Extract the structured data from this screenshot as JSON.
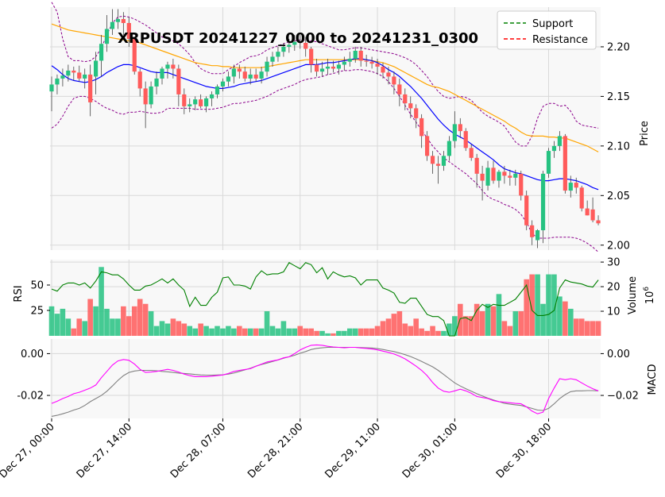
{
  "colors": {
    "up": "#26c281",
    "down": "#ff5b5b",
    "sma_fast": "#0000ff",
    "sma_slow": "#ffa500",
    "bollinger": "#8b008b",
    "rsi": "#008000",
    "macd": "#ff00ff",
    "signal": "#808080",
    "support": "#008000",
    "resistance": "#ff0000",
    "panel_bg": "#f8f8f8",
    "grid": "#d9d9d9"
  },
  "chart_data": {
    "type": "candlestick",
    "title": "XRPUSDT 20241227_0000 to 20241231_0300",
    "x_tick_labels": [
      "Dec 27, 00:00",
      "Dec 27, 14:00",
      "Dec 28, 07:00",
      "Dec 28, 21:00",
      "Dec 29, 11:00",
      "Dec 30, 01:00",
      "Dec 30, 18:00"
    ],
    "x_tick_index": [
      0,
      14,
      31,
      45,
      59,
      73,
      90
    ],
    "legend": [
      {
        "name": "Support",
        "color": "#008000",
        "style": "dashed"
      },
      {
        "name": "Resistance",
        "color": "#ff0000",
        "style": "dashed"
      }
    ],
    "price": {
      "ylabel": "Price",
      "ylim": [
        1.995,
        2.24
      ],
      "ticks": [
        2.0,
        2.05,
        2.1,
        2.15,
        2.2
      ],
      "tick_labels": [
        "2.00",
        "2.05",
        "2.10",
        "2.15",
        "2.20"
      ],
      "open": [
        2.155,
        2.162,
        2.168,
        2.171,
        2.176,
        2.174,
        2.168,
        2.172,
        2.17,
        2.186,
        2.203,
        2.218,
        2.225,
        2.228,
        2.224,
        2.208,
        2.175,
        2.158,
        2.142,
        2.16,
        2.168,
        2.178,
        2.182,
        2.178,
        2.152,
        2.14,
        2.142,
        2.147,
        2.14,
        2.148,
        2.152,
        2.16,
        2.165,
        2.17,
        2.178,
        2.175,
        2.168,
        2.172,
        2.168,
        2.175,
        2.185,
        2.19,
        2.195,
        2.2,
        2.202,
        2.205,
        2.204,
        2.198,
        2.182,
        2.175,
        2.178,
        2.18,
        2.178,
        2.182,
        2.185,
        2.188,
        2.196,
        2.186,
        2.185,
        2.183,
        2.18,
        2.174,
        2.17,
        2.162,
        2.152,
        2.143,
        2.138,
        2.128,
        2.11,
        2.09,
        2.082,
        2.08,
        2.09,
        2.105,
        2.122,
        2.115,
        2.098,
        2.088,
        2.072,
        2.06,
        2.078,
        2.065,
        2.074,
        2.07,
        2.068,
        2.072,
        2.05,
        2.02,
        2.005,
        2.015,
        2.072,
        2.095,
        2.1,
        2.11,
        2.055,
        2.063,
        2.058,
        2.037,
        2.036,
        2.025
      ],
      "high": [
        2.17,
        2.172,
        2.178,
        2.182,
        2.18,
        2.181,
        2.178,
        2.182,
        2.195,
        2.212,
        2.232,
        2.238,
        2.238,
        2.235,
        2.23,
        2.21,
        2.178,
        2.165,
        2.165,
        2.175,
        2.18,
        2.185,
        2.188,
        2.182,
        2.158,
        2.148,
        2.15,
        2.152,
        2.15,
        2.155,
        2.162,
        2.168,
        2.175,
        2.182,
        2.182,
        2.18,
        2.178,
        2.178,
        2.18,
        2.19,
        2.195,
        2.2,
        2.204,
        2.208,
        2.212,
        2.212,
        2.21,
        2.2,
        2.188,
        2.185,
        2.188,
        2.186,
        2.186,
        2.19,
        2.195,
        2.2,
        2.2,
        2.192,
        2.19,
        2.188,
        2.184,
        2.18,
        2.175,
        2.168,
        2.158,
        2.15,
        2.142,
        2.132,
        2.115,
        2.095,
        2.09,
        2.095,
        2.11,
        2.135,
        2.128,
        2.118,
        2.102,
        2.092,
        2.08,
        2.085,
        2.085,
        2.076,
        2.08,
        2.076,
        2.076,
        2.075,
        2.055,
        2.025,
        2.016,
        2.075,
        2.098,
        2.105,
        2.115,
        2.112,
        2.07,
        2.068,
        2.06,
        2.045,
        2.048,
        2.03
      ],
      "low": [
        2.135,
        2.152,
        2.16,
        2.165,
        2.166,
        2.165,
        2.158,
        2.13,
        2.152,
        2.17,
        2.195,
        2.212,
        2.218,
        2.212,
        2.2,
        2.172,
        2.15,
        2.118,
        2.138,
        2.152,
        2.162,
        2.168,
        2.168,
        2.14,
        2.132,
        2.134,
        2.136,
        2.138,
        2.134,
        2.14,
        2.148,
        2.155,
        2.16,
        2.163,
        2.168,
        2.165,
        2.162,
        2.165,
        2.163,
        2.17,
        2.18,
        2.185,
        2.19,
        2.194,
        2.196,
        2.198,
        2.19,
        2.174,
        2.17,
        2.17,
        2.172,
        2.174,
        2.172,
        2.176,
        2.18,
        2.184,
        2.18,
        2.18,
        2.178,
        2.172,
        2.168,
        2.162,
        2.152,
        2.14,
        2.136,
        2.128,
        2.118,
        2.098,
        2.085,
        2.072,
        2.062,
        2.075,
        2.085,
        2.098,
        2.108,
        2.095,
        2.085,
        2.058,
        2.045,
        2.055,
        2.062,
        2.058,
        2.062,
        2.06,
        2.06,
        2.045,
        2.015,
        2.0,
        1.997,
        2.002,
        2.068,
        2.088,
        2.095,
        2.052,
        2.048,
        2.052,
        2.034,
        2.03,
        2.023,
        2.02
      ],
      "close": [
        2.162,
        2.168,
        2.171,
        2.176,
        2.174,
        2.168,
        2.172,
        2.144,
        2.186,
        2.203,
        2.218,
        2.225,
        2.228,
        2.224,
        2.208,
        2.175,
        2.158,
        2.142,
        2.16,
        2.168,
        2.178,
        2.182,
        2.178,
        2.152,
        2.14,
        2.142,
        2.147,
        2.14,
        2.148,
        2.152,
        2.16,
        2.165,
        2.17,
        2.178,
        2.175,
        2.168,
        2.172,
        2.168,
        2.175,
        2.185,
        2.19,
        2.195,
        2.2,
        2.202,
        2.205,
        2.204,
        2.198,
        2.182,
        2.175,
        2.178,
        2.18,
        2.178,
        2.182,
        2.185,
        2.188,
        2.196,
        2.186,
        2.185,
        2.183,
        2.18,
        2.174,
        2.17,
        2.162,
        2.152,
        2.143,
        2.138,
        2.128,
        2.11,
        2.09,
        2.082,
        2.08,
        2.09,
        2.105,
        2.122,
        2.115,
        2.098,
        2.088,
        2.072,
        2.065,
        2.078,
        2.065,
        2.074,
        2.07,
        2.068,
        2.072,
        2.05,
        2.02,
        2.008,
        2.015,
        2.072,
        2.095,
        2.1,
        2.11,
        2.055,
        2.063,
        2.058,
        2.037,
        2.03,
        2.025,
        2.022
      ],
      "sma_fast": [
        2.181,
        2.177,
        2.172,
        2.168,
        2.166,
        2.165,
        2.164,
        2.165,
        2.167,
        2.17,
        2.174,
        2.177,
        2.18,
        2.182,
        2.182,
        2.181,
        2.179,
        2.177,
        2.175,
        2.174,
        2.174,
        2.174,
        2.172,
        2.17,
        2.168,
        2.166,
        2.164,
        2.162,
        2.16,
        2.159,
        2.158,
        2.158,
        2.159,
        2.16,
        2.162,
        2.163,
        2.164,
        2.165,
        2.166,
        2.168,
        2.17,
        2.172,
        2.174,
        2.176,
        2.178,
        2.18,
        2.182,
        2.182,
        2.182,
        2.183,
        2.184,
        2.184,
        2.185,
        2.186,
        2.187,
        2.188,
        2.188,
        2.187,
        2.186,
        2.184,
        2.181,
        2.177,
        2.174,
        2.17,
        2.165,
        2.16,
        2.154,
        2.148,
        2.141,
        2.134,
        2.127,
        2.121,
        2.116,
        2.112,
        2.109,
        2.106,
        2.102,
        2.098,
        2.094,
        2.09,
        2.086,
        2.081,
        2.077,
        2.075,
        2.073,
        2.072,
        2.07,
        2.068,
        2.066,
        2.065,
        2.065,
        2.066,
        2.067,
        2.067,
        2.066,
        2.065,
        2.063,
        2.061,
        2.058,
        2.056
      ],
      "sma_slow": [
        2.223,
        2.221,
        2.219,
        2.217,
        2.216,
        2.215,
        2.214,
        2.213,
        2.212,
        2.211,
        2.21,
        2.209,
        2.208,
        2.207,
        2.206,
        2.205,
        2.204,
        2.202,
        2.2,
        2.198,
        2.196,
        2.194,
        2.192,
        2.19,
        2.188,
        2.186,
        2.184,
        2.183,
        2.182,
        2.181,
        2.181,
        2.18,
        2.18,
        2.179,
        2.179,
        2.179,
        2.179,
        2.179,
        2.179,
        2.18,
        2.181,
        2.182,
        2.183,
        2.184,
        2.185,
        2.186,
        2.187,
        2.187,
        2.187,
        2.187,
        2.187,
        2.187,
        2.187,
        2.187,
        2.187,
        2.187,
        2.187,
        2.187,
        2.186,
        2.185,
        2.184,
        2.182,
        2.18,
        2.177,
        2.174,
        2.171,
        2.168,
        2.165,
        2.162,
        2.16,
        2.159,
        2.157,
        2.155,
        2.152,
        2.149,
        2.146,
        2.143,
        2.14,
        2.137,
        2.134,
        2.131,
        2.128,
        2.125,
        2.121,
        2.118,
        2.114,
        2.111,
        2.11,
        2.11,
        2.11,
        2.109,
        2.109,
        2.108,
        2.108,
        2.106,
        2.104,
        2.102,
        2.1,
        2.097,
        2.094
      ],
      "bb_upper": [
        2.245,
        2.235,
        2.208,
        2.19,
        2.186,
        2.186,
        2.185,
        2.186,
        2.19,
        2.199,
        2.212,
        2.224,
        2.23,
        2.231,
        2.23,
        2.228,
        2.225,
        2.222,
        2.218,
        2.214,
        2.21,
        2.208,
        2.206,
        2.203,
        2.198,
        2.192,
        2.184,
        2.178,
        2.175,
        2.173,
        2.173,
        2.173,
        2.177,
        2.18,
        2.184,
        2.187,
        2.19,
        2.191,
        2.193,
        2.197,
        2.199,
        2.201,
        2.203,
        2.205,
        2.206,
        2.207,
        2.207,
        2.206,
        2.205,
        2.203,
        2.201,
        2.199,
        2.197,
        2.197,
        2.198,
        2.199,
        2.199,
        2.198,
        2.197,
        2.196,
        2.195,
        2.194,
        2.193,
        2.191,
        2.189,
        2.186,
        2.182,
        2.176,
        2.17,
        2.162,
        2.155,
        2.15,
        2.148,
        2.149,
        2.15,
        2.149,
        2.146,
        2.14,
        2.134,
        2.13,
        2.127,
        2.124,
        2.12,
        2.112,
        2.104,
        2.1,
        2.1,
        2.11,
        2.128,
        2.14,
        2.143,
        2.143,
        2.14,
        2.141,
        2.135,
        2.125,
        2.121,
        2.12,
        2.119,
        2.118
      ],
      "bb_lower": [
        2.118,
        2.122,
        2.13,
        2.14,
        2.148,
        2.15,
        2.15,
        2.148,
        2.145,
        2.141,
        2.138,
        2.136,
        2.133,
        2.132,
        2.134,
        2.134,
        2.135,
        2.134,
        2.133,
        2.133,
        2.134,
        2.138,
        2.138,
        2.138,
        2.138,
        2.138,
        2.137,
        2.137,
        2.137,
        2.137,
        2.138,
        2.139,
        2.141,
        2.143,
        2.143,
        2.144,
        2.145,
        2.146,
        2.148,
        2.15,
        2.153,
        2.156,
        2.158,
        2.16,
        2.162,
        2.165,
        2.167,
        2.168,
        2.169,
        2.17,
        2.172,
        2.173,
        2.175,
        2.176,
        2.176,
        2.177,
        2.177,
        2.176,
        2.175,
        2.173,
        2.17,
        2.165,
        2.158,
        2.15,
        2.141,
        2.132,
        2.124,
        2.116,
        2.108,
        2.1,
        2.094,
        2.088,
        2.084,
        2.08,
        2.076,
        2.072,
        2.067,
        2.062,
        2.055,
        2.049,
        2.046,
        2.044,
        2.041,
        2.039,
        2.036,
        2.031,
        2.023,
        2.012,
        2.007,
        2.007,
        2.007,
        2.008,
        2.008,
        2.008,
        2.008,
        2.007,
        2.005,
        2.002,
        1.998,
        1.993
      ]
    },
    "volume": {
      "ylabel": "Volume",
      "unit_label": "10^6",
      "ylim": [
        0,
        31
      ],
      "ticks": [
        10,
        20,
        30
      ],
      "tick_labels": [
        "10",
        "20",
        "30"
      ],
      "values": [
        12,
        9,
        11,
        7,
        3,
        7,
        6,
        15,
        12,
        28,
        11,
        7,
        7,
        12,
        8,
        12,
        15,
        13,
        10,
        4,
        6,
        5,
        7,
        6,
        5,
        4,
        3,
        5,
        4,
        3,
        4,
        3,
        4,
        3,
        4,
        3,
        3,
        3,
        3,
        10,
        4,
        3,
        6,
        3,
        3,
        4,
        3,
        3,
        2,
        2,
        1,
        1,
        2,
        2,
        3,
        3,
        3,
        3,
        3,
        4,
        6,
        7,
        9,
        10,
        5,
        4,
        7,
        3,
        2,
        4,
        2,
        2,
        5,
        8,
        13,
        8,
        8,
        13,
        10,
        13,
        12,
        17,
        6,
        4,
        10,
        10,
        23,
        25,
        25,
        13,
        25,
        25,
        16,
        14,
        11,
        7,
        7,
        6,
        6,
        6
      ]
    },
    "rsi": {
      "ylabel": "RSI",
      "ylim": [
        0,
        75
      ],
      "ticks": [
        25,
        50
      ],
      "tick_labels": [
        "25",
        "50"
      ],
      "values": [
        46,
        44,
        50,
        52,
        52,
        50,
        52,
        47,
        54,
        63,
        62,
        60,
        60,
        56,
        50,
        45,
        45,
        49,
        50,
        53,
        56,
        52,
        56,
        50,
        45,
        29,
        38,
        30,
        30,
        38,
        43,
        57,
        58,
        50,
        50,
        49,
        46,
        58,
        64,
        60,
        61,
        61,
        63,
        72,
        69,
        66,
        72,
        70,
        62,
        67,
        56,
        63,
        60,
        58,
        59,
        57,
        50,
        55,
        55,
        55,
        47,
        45,
        42,
        33,
        32,
        37,
        37,
        29,
        21,
        19,
        19,
        15,
        0,
        0,
        17,
        18,
        15,
        25,
        31,
        28,
        31,
        30,
        30,
        33,
        36,
        43,
        50,
        25,
        20,
        20,
        21,
        25,
        47,
        55,
        53,
        52,
        51,
        49,
        48,
        55
      ]
    },
    "macd": {
      "ylabel": "MACD",
      "ylim": [
        -0.031,
        0.007
      ],
      "ticks": [
        0.0,
        -0.02
      ],
      "left_tick_labels": [
        "0.00",
        "-0.02"
      ],
      "right_tick_labels": [
        "0.00",
        "−0.02"
      ],
      "macd": [
        -0.0238,
        -0.0228,
        -0.0215,
        -0.0205,
        -0.0192,
        -0.0185,
        -0.0175,
        -0.0165,
        -0.015,
        -0.0115,
        -0.0085,
        -0.0055,
        -0.0035,
        -0.0028,
        -0.0032,
        -0.005,
        -0.0075,
        -0.009,
        -0.0088,
        -0.0085,
        -0.008,
        -0.0075,
        -0.008,
        -0.0088,
        -0.0098,
        -0.0105,
        -0.011,
        -0.011,
        -0.011,
        -0.0108,
        -0.0105,
        -0.0102,
        -0.0095,
        -0.0085,
        -0.008,
        -0.0076,
        -0.0072,
        -0.006,
        -0.005,
        -0.004,
        -0.0035,
        -0.003,
        -0.002,
        -0.0015,
        0.0,
        0.0018,
        0.003,
        0.004,
        0.0042,
        0.004,
        0.0035,
        0.0032,
        0.003,
        0.0028,
        0.003,
        0.003,
        0.0027,
        0.0025,
        0.0022,
        0.0018,
        0.0012,
        0.0006,
        -0.0002,
        -0.0012,
        -0.0025,
        -0.0042,
        -0.006,
        -0.008,
        -0.0105,
        -0.0138,
        -0.0165,
        -0.018,
        -0.0185,
        -0.0178,
        -0.017,
        -0.0178,
        -0.019,
        -0.0205,
        -0.021,
        -0.0215,
        -0.0225,
        -0.023,
        -0.0232,
        -0.0235,
        -0.0238,
        -0.024,
        -0.0255,
        -0.0275,
        -0.0288,
        -0.028,
        -0.0215,
        -0.0165,
        -0.012,
        -0.0125,
        -0.012,
        -0.0125,
        -0.014,
        -0.0155,
        -0.0168,
        -0.0178
      ],
      "signal": [
        -0.03,
        -0.0295,
        -0.0288,
        -0.028,
        -0.027,
        -0.0262,
        -0.0248,
        -0.023,
        -0.0215,
        -0.02,
        -0.018,
        -0.0155,
        -0.0128,
        -0.0105,
        -0.009,
        -0.0083,
        -0.008,
        -0.008,
        -0.008,
        -0.0082,
        -0.0085,
        -0.0087,
        -0.009,
        -0.0093,
        -0.0095,
        -0.0097,
        -0.01,
        -0.0102,
        -0.0103,
        -0.0103,
        -0.0102,
        -0.0101,
        -0.0098,
        -0.0093,
        -0.0085,
        -0.0078,
        -0.007,
        -0.006,
        -0.0052,
        -0.0045,
        -0.0038,
        -0.003,
        -0.0022,
        -0.0015,
        -0.0008,
        0.0002,
        0.001,
        0.002,
        0.0025,
        0.0028,
        0.003,
        0.003,
        0.003,
        0.003,
        0.003,
        0.003,
        0.0029,
        0.0028,
        0.0027,
        0.0024,
        0.002,
        0.0015,
        0.001,
        0.0003,
        -0.0005,
        -0.0014,
        -0.0025,
        -0.0037,
        -0.005,
        -0.0063,
        -0.008,
        -0.01,
        -0.012,
        -0.014,
        -0.0155,
        -0.0168,
        -0.018,
        -0.0192,
        -0.0203,
        -0.0213,
        -0.0222,
        -0.023,
        -0.0238,
        -0.0242,
        -0.0245,
        -0.0248,
        -0.0255,
        -0.0262,
        -0.027,
        -0.0272,
        -0.0262,
        -0.024,
        -0.0215,
        -0.0196,
        -0.0182,
        -0.0178,
        -0.0178,
        -0.0177,
        -0.0177,
        -0.0178
      ]
    }
  }
}
